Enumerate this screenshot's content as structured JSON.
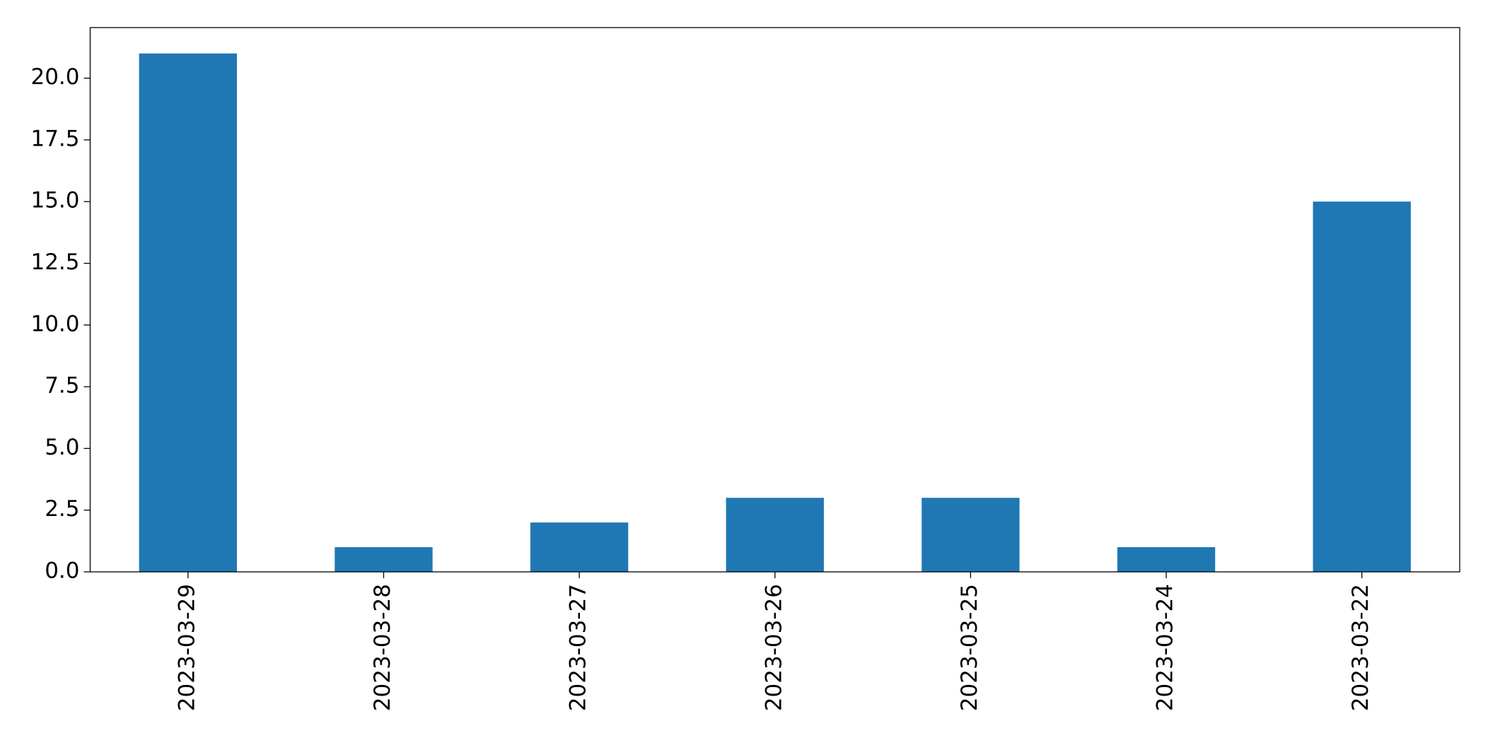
{
  "chart_data": {
    "type": "bar",
    "categories": [
      "2023-03-29",
      "2023-03-28",
      "2023-03-27",
      "2023-03-26",
      "2023-03-25",
      "2023-03-24",
      "2023-03-22"
    ],
    "values": [
      21,
      1,
      2,
      3,
      3,
      1,
      15
    ],
    "color": "#1f77b4",
    "ylim": [
      0,
      22.05
    ],
    "yticks": [
      {
        "value": 0,
        "label": "0.0"
      },
      {
        "value": 2.5,
        "label": "2.5"
      },
      {
        "value": 5,
        "label": "5.0"
      },
      {
        "value": 7.5,
        "label": "7.5"
      },
      {
        "value": 10,
        "label": "10.0"
      },
      {
        "value": 12.5,
        "label": "12.5"
      },
      {
        "value": 15,
        "label": "15.0"
      },
      {
        "value": 17.5,
        "label": "17.5"
      },
      {
        "value": 20,
        "label": "20.0"
      }
    ],
    "grid": false
  }
}
